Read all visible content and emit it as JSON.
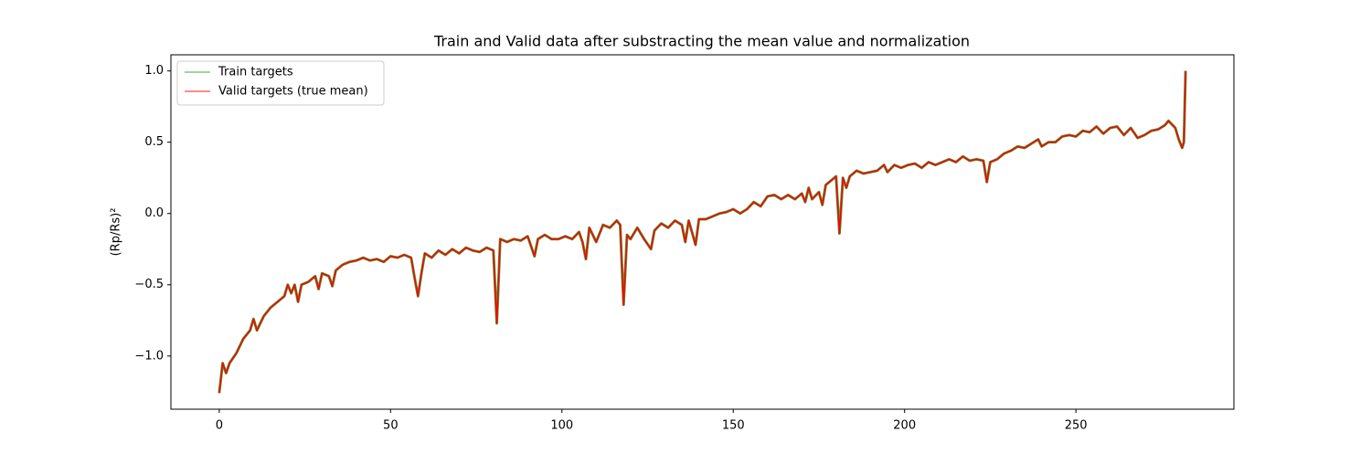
{
  "chart_data": {
    "type": "line",
    "title": "Train and Valid data after substracting the mean value and normalization",
    "ylabel": "(Rp/Rs)²",
    "x": [
      0,
      1,
      2,
      3,
      5,
      7,
      9,
      10,
      11,
      13,
      15,
      17,
      19,
      20,
      21,
      22,
      23,
      24,
      26,
      28,
      29,
      30,
      32,
      33,
      34,
      36,
      38,
      40,
      42,
      44,
      46,
      48,
      50,
      52,
      54,
      56,
      57,
      58,
      59,
      60,
      62,
      64,
      66,
      68,
      70,
      72,
      74,
      76,
      78,
      80,
      81,
      82,
      84,
      86,
      88,
      90,
      92,
      93,
      95,
      97,
      99,
      101,
      103,
      105,
      106,
      107,
      108,
      110,
      112,
      114,
      116,
      117,
      118,
      119,
      120,
      122,
      124,
      126,
      127,
      129,
      131,
      133,
      135,
      136,
      137,
      139,
      140,
      142,
      144,
      146,
      148,
      150,
      152,
      154,
      156,
      158,
      160,
      162,
      164,
      166,
      168,
      170,
      171,
      172,
      173,
      175,
      176,
      177,
      178,
      180,
      181,
      182,
      183,
      184,
      186,
      188,
      190,
      192,
      194,
      195,
      197,
      199,
      201,
      203,
      205,
      207,
      209,
      211,
      213,
      215,
      217,
      219,
      221,
      223,
      224,
      225,
      227,
      229,
      231,
      233,
      235,
      237,
      239,
      240,
      242,
      244,
      246,
      248,
      250,
      252,
      254,
      256,
      258,
      260,
      262,
      264,
      266,
      268,
      270,
      272,
      274,
      276,
      277,
      279,
      280,
      281,
      281.5,
      282
    ],
    "series": [
      {
        "name": "Train targets",
        "color": "#2ca02c",
        "values": [
          -1.26,
          -1.05,
          -1.12,
          -1.05,
          -0.98,
          -0.88,
          -0.82,
          -0.74,
          -0.82,
          -0.72,
          -0.66,
          -0.62,
          -0.58,
          -0.5,
          -0.56,
          -0.5,
          -0.62,
          -0.5,
          -0.48,
          -0.44,
          -0.53,
          -0.42,
          -0.44,
          -0.51,
          -0.4,
          -0.36,
          -0.34,
          -0.33,
          -0.31,
          -0.33,
          -0.32,
          -0.34,
          -0.3,
          -0.31,
          -0.29,
          -0.31,
          -0.45,
          -0.58,
          -0.42,
          -0.28,
          -0.31,
          -0.26,
          -0.29,
          -0.25,
          -0.28,
          -0.24,
          -0.26,
          -0.27,
          -0.24,
          -0.26,
          -0.77,
          -0.18,
          -0.2,
          -0.18,
          -0.19,
          -0.16,
          -0.3,
          -0.18,
          -0.15,
          -0.18,
          -0.18,
          -0.16,
          -0.18,
          -0.13,
          -0.2,
          -0.32,
          -0.1,
          -0.2,
          -0.08,
          -0.1,
          -0.05,
          -0.08,
          -0.64,
          -0.15,
          -0.18,
          -0.1,
          -0.18,
          -0.25,
          -0.12,
          -0.07,
          -0.1,
          -0.05,
          -0.08,
          -0.2,
          -0.05,
          -0.22,
          -0.04,
          -0.04,
          -0.02,
          0.0,
          0.01,
          0.03,
          0.0,
          0.03,
          0.08,
          0.05,
          0.12,
          0.13,
          0.1,
          0.13,
          0.1,
          0.14,
          0.08,
          0.18,
          0.1,
          0.15,
          0.06,
          0.2,
          0.22,
          0.26,
          -0.14,
          0.25,
          0.18,
          0.26,
          0.3,
          0.28,
          0.29,
          0.3,
          0.34,
          0.29,
          0.34,
          0.32,
          0.34,
          0.35,
          0.32,
          0.36,
          0.34,
          0.36,
          0.38,
          0.36,
          0.4,
          0.37,
          0.38,
          0.37,
          0.22,
          0.36,
          0.38,
          0.42,
          0.44,
          0.47,
          0.46,
          0.49,
          0.52,
          0.47,
          0.5,
          0.5,
          0.54,
          0.55,
          0.54,
          0.58,
          0.57,
          0.61,
          0.56,
          0.6,
          0.61,
          0.55,
          0.6,
          0.53,
          0.55,
          0.58,
          0.59,
          0.62,
          0.65,
          0.6,
          0.52,
          0.46,
          0.5,
          1.0
        ]
      },
      {
        "name": "Valid targets (true mean)",
        "color": "#ff0000",
        "values": [
          -1.26,
          -1.05,
          -1.12,
          -1.05,
          -0.98,
          -0.88,
          -0.82,
          -0.74,
          -0.82,
          -0.72,
          -0.66,
          -0.62,
          -0.58,
          -0.5,
          -0.56,
          -0.5,
          -0.62,
          -0.5,
          -0.48,
          -0.44,
          -0.53,
          -0.42,
          -0.44,
          -0.51,
          -0.4,
          -0.36,
          -0.34,
          -0.33,
          -0.31,
          -0.33,
          -0.32,
          -0.34,
          -0.3,
          -0.31,
          -0.29,
          -0.31,
          -0.45,
          -0.58,
          -0.42,
          -0.28,
          -0.31,
          -0.26,
          -0.29,
          -0.25,
          -0.28,
          -0.24,
          -0.26,
          -0.27,
          -0.24,
          -0.26,
          -0.77,
          -0.18,
          -0.2,
          -0.18,
          -0.19,
          -0.16,
          -0.3,
          -0.18,
          -0.15,
          -0.18,
          -0.18,
          -0.16,
          -0.18,
          -0.13,
          -0.2,
          -0.32,
          -0.1,
          -0.2,
          -0.08,
          -0.1,
          -0.05,
          -0.08,
          -0.64,
          -0.15,
          -0.18,
          -0.1,
          -0.18,
          -0.25,
          -0.12,
          -0.07,
          -0.1,
          -0.05,
          -0.08,
          -0.2,
          -0.05,
          -0.22,
          -0.04,
          -0.04,
          -0.02,
          0.0,
          0.01,
          0.03,
          0.0,
          0.03,
          0.08,
          0.05,
          0.12,
          0.13,
          0.1,
          0.13,
          0.1,
          0.14,
          0.08,
          0.18,
          0.1,
          0.15,
          0.06,
          0.2,
          0.22,
          0.26,
          -0.14,
          0.25,
          0.18,
          0.26,
          0.3,
          0.28,
          0.29,
          0.3,
          0.34,
          0.29,
          0.34,
          0.32,
          0.34,
          0.35,
          0.32,
          0.36,
          0.34,
          0.36,
          0.38,
          0.36,
          0.4,
          0.37,
          0.38,
          0.37,
          0.22,
          0.36,
          0.38,
          0.42,
          0.44,
          0.47,
          0.46,
          0.49,
          0.52,
          0.47,
          0.5,
          0.5,
          0.54,
          0.55,
          0.54,
          0.58,
          0.57,
          0.61,
          0.56,
          0.6,
          0.61,
          0.55,
          0.6,
          0.53,
          0.55,
          0.58,
          0.59,
          0.62,
          0.65,
          0.6,
          0.52,
          0.46,
          0.5,
          1.0
        ]
      }
    ],
    "xlim": [
      -14.1,
      296.1
    ],
    "xticks": [
      0,
      50,
      100,
      150,
      200,
      250
    ],
    "ylim": [
      -1.373,
      1.113
    ],
    "yticks": [
      {
        "value": -1.0,
        "label": "−1.0"
      },
      {
        "value": -0.5,
        "label": "−0.5"
      },
      {
        "value": 0,
        "label": "0.0"
      },
      {
        "value": 0.5,
        "label": "0.5"
      },
      {
        "value": 1.0,
        "label": "1.0"
      }
    ],
    "legend": "upper left",
    "grid": false
  }
}
